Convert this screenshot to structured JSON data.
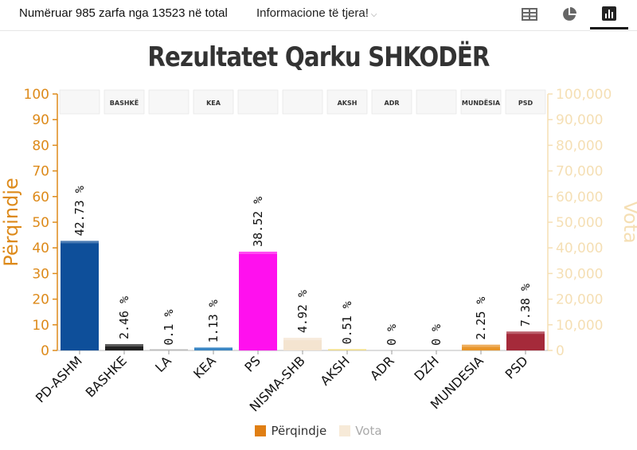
{
  "header": {
    "counted_text": "Numëruar 985 zarfa nga 13523 në total",
    "info_text": "Informacione të tjera!"
  },
  "tabs": [
    {
      "icon": "table-icon",
      "active": false
    },
    {
      "icon": "pie-chart-icon",
      "active": false
    },
    {
      "icon": "bar-chart-icon",
      "active": true
    }
  ],
  "colors": {
    "percent_axis": "#dd8a1a",
    "votes_axis": "#f5dfb4",
    "legend_percent": "#e07f14",
    "legend_votes": "#f7ead8"
  },
  "chart_data": {
    "type": "bar",
    "title": "Rezultatet Qarku SHKODËR",
    "ylabel": "Përqindje",
    "y2label": "Vota",
    "ylim": [
      0,
      100
    ],
    "y2lim": [
      0,
      100000
    ],
    "yticks": [
      "0",
      "10",
      "20",
      "30",
      "40",
      "50",
      "60",
      "70",
      "80",
      "90",
      "100"
    ],
    "y2ticks": [
      "0",
      "10,000",
      "20,000",
      "30,000",
      "40,000",
      "50,000",
      "60,000",
      "70,000",
      "80,000",
      "90,000",
      "100,000"
    ],
    "categories": [
      "PD-ASHM",
      "BASHKE",
      "LA",
      "KEA",
      "PS",
      "NISMA-SHB",
      "AKSH",
      "ADR",
      "DZH",
      "MUNDESIA",
      "PSD"
    ],
    "series": [
      {
        "name": "Përqindje",
        "values": [
          42.73,
          2.46,
          0.1,
          1.13,
          38.52,
          4.92,
          0.51,
          0,
          0,
          2.25,
          7.38
        ],
        "labels": [
          "42.73 %",
          "2.46 %",
          "0.1 %",
          "1.13 %",
          "38.52 %",
          "4.92 %",
          "0.51 %",
          "0 %",
          "0 %",
          "2.25 %",
          "7.38 %"
        ],
        "colors": [
          "#0e4f9a",
          "#222222",
          "#bbbbbb",
          "#3b86c4",
          "#ff10ee",
          "#f4e4d0",
          "#f2df8a",
          "#cccccc",
          "#cccccc",
          "#e8952a",
          "#a52a3a"
        ]
      }
    ],
    "logos": [
      {
        "icon": "pd-logo",
        "text": ""
      },
      {
        "icon": "bashke-logo",
        "text": "BASHKË"
      },
      {
        "icon": "la-logo",
        "text": ""
      },
      {
        "icon": "kea-logo",
        "text": "KEA"
      },
      {
        "icon": "ps-logo",
        "text": ""
      },
      {
        "icon": "nisma-logo",
        "text": ""
      },
      {
        "icon": "aksh-logo",
        "text": "AKSH"
      },
      {
        "icon": "adr-logo",
        "text": "ADR"
      },
      {
        "icon": "dzh-logo",
        "text": ""
      },
      {
        "icon": "mundesia-logo",
        "text": "MUNDËSIA"
      },
      {
        "icon": "psd-logo",
        "text": "PSD"
      }
    ],
    "legend": [
      "Përqindje",
      "Vota"
    ],
    "legend_position": "bottom",
    "grid": false
  }
}
